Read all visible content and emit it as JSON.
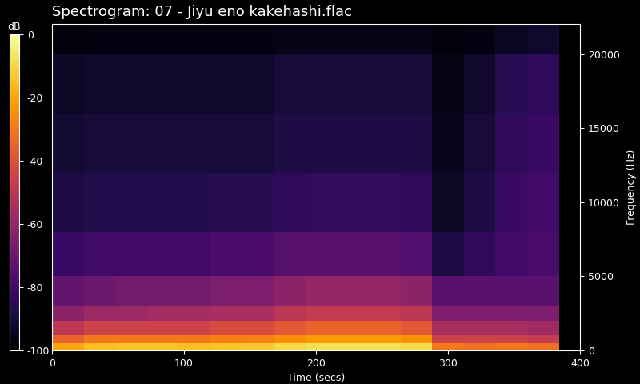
{
  "chart_data": {
    "type": "heatmap",
    "title": "Spectrogram: 07 - Jiyu eno kakehashi.flac",
    "xlabel": "Time (secs)",
    "ylabel": "Frequency (Hz)",
    "colorbar_label": "dB",
    "color": "inferno",
    "x_edges": [
      0,
      24,
      48,
      72,
      96,
      120,
      144,
      168,
      192,
      216,
      240,
      264,
      288,
      312,
      336,
      360,
      384
    ],
    "y_edges": [
      0,
      500,
      1000,
      2000,
      3000,
      5000,
      8000,
      12000,
      16000,
      20000,
      22050
    ],
    "cells": [
      [
        -20,
        -15,
        -14,
        -14,
        -15,
        -14,
        -13,
        -10,
        -8,
        -8,
        -8,
        -9,
        -30,
        -32,
        -30,
        -32
      ],
      [
        -35,
        -30,
        -30,
        -30,
        -30,
        -28,
        -28,
        -25,
        -22,
        -22,
        -22,
        -24,
        -45,
        -45,
        -45,
        -47
      ],
      [
        -50,
        -45,
        -45,
        -45,
        -45,
        -42,
        -42,
        -38,
        -35,
        -35,
        -35,
        -38,
        -55,
        -55,
        -55,
        -57
      ],
      [
        -62,
        -58,
        -58,
        -56,
        -56,
        -55,
        -55,
        -50,
        -48,
        -48,
        -48,
        -50,
        -65,
        -65,
        -65,
        -66
      ],
      [
        -72,
        -70,
        -68,
        -68,
        -68,
        -66,
        -66,
        -62,
        -60,
        -60,
        -60,
        -62,
        -75,
        -74,
        -74,
        -74
      ],
      [
        -82,
        -80,
        -80,
        -80,
        -80,
        -78,
        -78,
        -75,
        -74,
        -74,
        -74,
        -76,
        -88,
        -84,
        -80,
        -78
      ],
      [
        -88,
        -87,
        -87,
        -87,
        -87,
        -86,
        -86,
        -84,
        -83,
        -83,
        -83,
        -84,
        -93,
        -88,
        -82,
        -80
      ],
      [
        -91,
        -90,
        -90,
        -90,
        -90,
        -90,
        -90,
        -88,
        -88,
        -88,
        -88,
        -88,
        -95,
        -90,
        -84,
        -82
      ],
      [
        -93,
        -92,
        -92,
        -92,
        -92,
        -92,
        -92,
        -90,
        -90,
        -90,
        -90,
        -90,
        -96,
        -92,
        -86,
        -84
      ],
      [
        -98,
        -97,
        -97,
        -97,
        -97,
        -97,
        -97,
        -96,
        -96,
        -96,
        -96,
        -96,
        -98,
        -97,
        -94,
        -92
      ]
    ],
    "xlim": [
      0,
      400
    ],
    "xticks": [
      0,
      100,
      200,
      300,
      400
    ],
    "ylim": [
      0,
      22050
    ],
    "yticks": [
      0,
      5000,
      10000,
      15000,
      20000
    ],
    "color_range": [
      -100,
      0
    ],
    "color_ticks": [
      0,
      -20,
      -40,
      -60,
      -80,
      -100
    ]
  }
}
